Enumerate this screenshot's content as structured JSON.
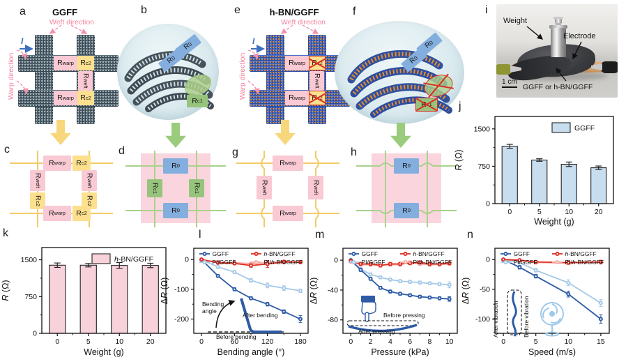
{
  "panel_letters": {
    "a": "a",
    "b": "b",
    "c": "c",
    "d": "d",
    "e": "e",
    "f": "f",
    "g": "g",
    "h": "h",
    "i": "i",
    "j": "j",
    "k": "k",
    "l": "l",
    "m": "m",
    "n": "n"
  },
  "schematic": {
    "ggff_title": "GGFF",
    "hbn_title_italic": "h",
    "hbn_title_rest": "-BN/GGFF",
    "weft": "Weft direction",
    "warp": "Warp direction",
    "current": "I"
  },
  "resistors": {
    "warp": {
      "base": "R",
      "sub": "warp"
    },
    "weft": {
      "base": "R",
      "sub": "weft"
    },
    "c2": {
      "base": "R",
      "sub": "c2"
    },
    "c1": {
      "base": "R",
      "sub": "c1"
    },
    "zero": {
      "base": "R",
      "sub": "0"
    }
  },
  "photo": {
    "weight": "Weight",
    "electrode": "Electrode",
    "sample_prefix": "GGFF or ",
    "sample_italic": "h",
    "sample_rest": "-BN/GGFF",
    "scale": "1 cm"
  },
  "insets": {
    "bending": {
      "angle": "Bending angle",
      "after": "After bending",
      "before": "Before bending"
    },
    "pressing": {
      "before": "Before pressing",
      "after": "After pressing"
    },
    "vibration": {
      "after": "After vibration",
      "before": "Before vibration"
    }
  },
  "chart_data": [
    {
      "id": "j",
      "type": "bar",
      "legend": [
        "GGFF"
      ],
      "bar_color": "#c8ddee",
      "categories": [
        "0",
        "5",
        "10",
        "20"
      ],
      "values": [
        1150,
        875,
        790,
        720
      ],
      "errors": [
        40,
        25,
        45,
        35
      ],
      "xlabel": "Weight (g)",
      "ylabel": "R (Ω)",
      "yticks": [
        0,
        750,
        1500
      ],
      "ylim": [
        0,
        1750
      ]
    },
    {
      "id": "k",
      "type": "bar",
      "legend": [
        "h-BN/GGFF"
      ],
      "bar_color": "#f8d2da",
      "categories": [
        "0",
        "5",
        "10",
        "20"
      ],
      "values": [
        1390,
        1390,
        1385,
        1385
      ],
      "errors": [
        45,
        35,
        60,
        45
      ],
      "xlabel": "Weight (g)",
      "ylabel": "R (Ω)",
      "yticks": [
        0,
        750,
        1500
      ],
      "ylim": [
        0,
        1750
      ]
    },
    {
      "id": "l",
      "type": "line",
      "xlabel": "Bending angle (°)",
      "ylabel": "ΔR (Ω)",
      "x": [
        0,
        30,
        60,
        90,
        120,
        150,
        180
      ],
      "xticks": [
        0,
        60,
        120,
        180
      ],
      "xlim": [
        -14,
        194
      ],
      "yticks": [
        0,
        -100,
        -200
      ],
      "ylim": [
        -248,
        38
      ],
      "series": [
        {
          "name": "GGFF",
          "color": "#2d5ba6",
          "values": [
            0,
            -55,
            -100,
            -130,
            -150,
            -175,
            -200
          ],
          "errors": [
            2,
            4,
            5,
            5,
            6,
            6,
            12
          ]
        },
        {
          "name": "h-BN/GGFF",
          "color": "#e02d22",
          "values": [
            0,
            -11,
            -13,
            -20,
            -15,
            -8,
            -9
          ],
          "errors": [
            2,
            4,
            4,
            6,
            12,
            5,
            5
          ]
        },
        {
          "name": "PI/GGFF",
          "color": "#a6c9e8",
          "values": [
            0,
            -25,
            -42,
            -70,
            -87,
            -96,
            -105
          ],
          "errors": [
            2,
            4,
            5,
            6,
            8,
            8,
            6
          ]
        },
        {
          "name": "PI/h-BN/GGFF",
          "color": "#f4a8a2",
          "values": [
            0,
            -8,
            -10,
            -14,
            -10,
            -6,
            -8
          ],
          "errors": [
            2,
            3,
            3,
            4,
            4,
            3,
            3
          ]
        }
      ]
    },
    {
      "id": "m",
      "type": "line",
      "xlabel": "Pressure (kPa)",
      "ylabel": "ΔR (Ω)",
      "x": [
        0,
        1,
        2,
        3,
        4,
        5,
        6,
        7,
        8,
        9,
        10
      ],
      "xticks": [
        0,
        2,
        4,
        6,
        8,
        10
      ],
      "xlim": [
        -0.8,
        10.8
      ],
      "yticks": [
        0,
        -40,
        -80
      ],
      "ylim": [
        -98,
        16
      ],
      "series": [
        {
          "name": "GGFF",
          "color": "#2d5ba6",
          "values": [
            0,
            -13,
            -25,
            -37,
            -42,
            -45,
            -47,
            -49,
            -50,
            -51,
            -52
          ],
          "errors": [
            1,
            2,
            2,
            2,
            2,
            2,
            2,
            2,
            2,
            2,
            3
          ]
        },
        {
          "name": "h-BN/GGFF",
          "color": "#e02d22",
          "values": [
            -1,
            -5,
            -5,
            -7,
            -5,
            -5,
            -4,
            -3,
            -5,
            -5,
            -4
          ],
          "errors": [
            1,
            2,
            2,
            2,
            2,
            2,
            2,
            2,
            2,
            2,
            2
          ]
        },
        {
          "name": "PI/GGFF",
          "color": "#a6c9e8",
          "values": [
            0,
            -12,
            -19,
            -23,
            -26,
            -28,
            -29,
            -30,
            -31,
            -32,
            -33
          ],
          "errors": [
            1,
            2,
            2,
            2,
            2,
            2,
            2,
            2,
            2,
            2,
            4
          ]
        },
        {
          "name": "PI/h-BN/GGFF",
          "color": "#f4a8a2",
          "values": [
            -2,
            -6,
            -6,
            -7,
            -6,
            -6,
            -3,
            -5,
            -6,
            -6,
            -5
          ],
          "errors": [
            1,
            2,
            2,
            2,
            2,
            2,
            2,
            2,
            2,
            2,
            2
          ]
        }
      ]
    },
    {
      "id": "n",
      "type": "line",
      "xlabel": "Speed (m/s)",
      "ylabel": "ΔR (Ω)",
      "x": [
        0,
        2.5,
        5,
        10,
        15
      ],
      "xticks": [
        0,
        5,
        10,
        15
      ],
      "xlim": [
        -1.3,
        16.3
      ],
      "yticks": [
        0,
        -50,
        -100
      ],
      "ylim": [
        -124,
        19
      ],
      "series": [
        {
          "name": "GGFF",
          "color": "#2d5ba6",
          "values": [
            0,
            -13,
            -28,
            -58,
            -100
          ],
          "errors": [
            1,
            3,
            3,
            5,
            7
          ]
        },
        {
          "name": "h-BN/GGFF",
          "color": "#e02d22",
          "values": [
            0,
            -1,
            -4,
            -5,
            -4
          ],
          "errors": [
            1,
            2,
            2,
            3,
            3
          ]
        },
        {
          "name": "PI/GGFF",
          "color": "#a6c9e8",
          "values": [
            0,
            -5,
            -18,
            -39,
            -73
          ],
          "errors": [
            1,
            2,
            3,
            5,
            6
          ]
        },
        {
          "name": "PI/h-BN/GGFF",
          "color": "#f4a8a2",
          "values": [
            0,
            -2,
            -5,
            -6,
            -5
          ],
          "errors": [
            1,
            2,
            2,
            2,
            2
          ]
        }
      ]
    }
  ]
}
